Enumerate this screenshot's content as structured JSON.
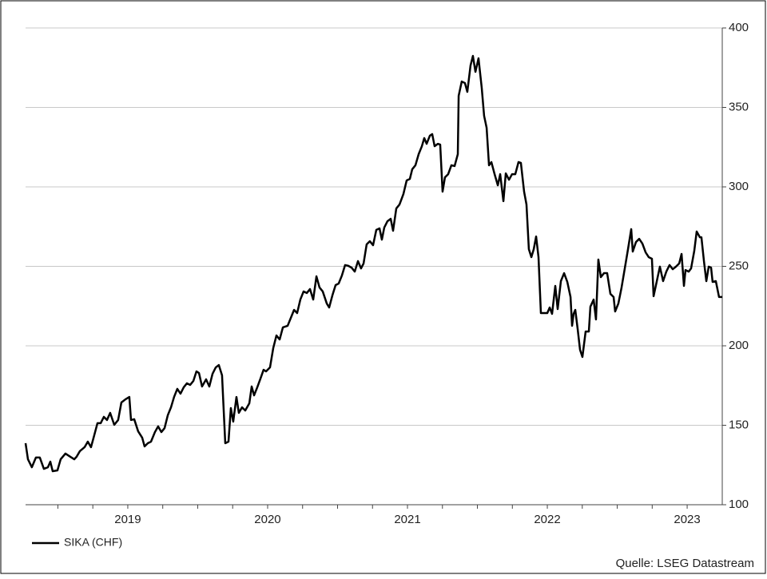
{
  "chart_data": {
    "type": "line",
    "source": "Quelle: LSEG Datastream",
    "x": [
      2018.769,
      2018.786,
      2018.814,
      2018.843,
      2018.871,
      2018.9,
      2018.929,
      2018.946,
      2018.963,
      2018.997,
      2019.02,
      2019.054,
      2019.089,
      2019.117,
      2019.134,
      2019.157,
      2019.191,
      2019.214,
      2019.237,
      2019.26,
      2019.283,
      2019.306,
      2019.329,
      2019.351,
      2019.374,
      2019.403,
      2019.431,
      2019.454,
      2019.483,
      2019.511,
      2019.523,
      2019.546,
      2019.574,
      2019.603,
      2019.62,
      2019.643,
      2019.666,
      2019.694,
      2019.717,
      2019.74,
      2019.763,
      2019.786,
      2019.809,
      2019.831,
      2019.854,
      2019.877,
      2019.9,
      2019.923,
      2019.946,
      2019.969,
      2019.991,
      2020.009,
      2020.031,
      2020.06,
      2020.083,
      2020.106,
      2020.129,
      2020.151,
      2020.174,
      2020.197,
      2020.22,
      2020.237,
      2020.254,
      2020.277,
      2020.294,
      2020.317,
      2020.34,
      2020.369,
      2020.386,
      2020.403,
      2020.426,
      2020.449,
      2020.471,
      2020.489,
      2020.517,
      2020.54,
      2020.563,
      2020.586,
      2020.609,
      2020.643,
      2020.666,
      2020.689,
      2020.711,
      2020.734,
      2020.757,
      2020.78,
      2020.803,
      2020.826,
      2020.849,
      2020.871,
      2020.894,
      2020.923,
      2020.94,
      2020.963,
      2020.986,
      2021.008,
      2021.031,
      2021.054,
      2021.077,
      2021.1,
      2021.123,
      2021.146,
      2021.168,
      2021.186,
      2021.208,
      2021.231,
      2021.254,
      2021.277,
      2021.3,
      2021.317,
      2021.334,
      2021.357,
      2021.38,
      2021.397,
      2021.42,
      2021.443,
      2021.471,
      2021.494,
      2021.517,
      2021.534,
      2021.557,
      2021.58,
      2021.603,
      2021.62,
      2021.637,
      2021.66,
      2021.677,
      2021.694,
      2021.717,
      2021.734,
      2021.751,
      2021.768,
      2021.791,
      2021.814,
      2021.837,
      2021.86,
      2021.866,
      2021.888,
      2021.911,
      2021.928,
      2021.951,
      2021.968,
      2021.986,
      2022.008,
      2022.031,
      2022.048,
      2022.066,
      2022.083,
      2022.1,
      2022.123,
      2022.146,
      2022.163,
      2022.186,
      2022.203,
      2022.226,
      2022.248,
      2022.271,
      2022.294,
      2022.311,
      2022.334,
      2022.351,
      2022.368,
      2022.386,
      2022.403,
      2022.42,
      2022.437,
      2022.454,
      2022.483,
      2022.5,
      2022.517,
      2022.534,
      2022.557,
      2022.574,
      2022.597,
      2022.62,
      2022.643,
      2022.666,
      2022.677,
      2022.688,
      2022.7,
      2022.717,
      2022.734,
      2022.751,
      2022.774,
      2022.797,
      2022.808,
      2022.831,
      2022.848,
      2022.865,
      2022.883,
      2022.905,
      2022.928,
      2022.951,
      2022.974,
      2022.985,
      2023.008,
      2023.031,
      2023.054,
      2023.077,
      2023.1,
      2023.111,
      2023.134,
      2023.157,
      2023.18,
      2023.203,
      2023.225,
      2023.248,
      2023.26,
      2023.283,
      2023.305,
      2023.328,
      2023.351,
      2023.374,
      2023.397,
      2023.42,
      2023.443,
      2023.46,
      2023.477,
      2023.488,
      2023.511,
      2023.528,
      2023.551,
      2023.568,
      2023.591,
      2023.602,
      2023.62,
      2023.637,
      2023.654,
      2023.671,
      2023.682,
      2023.705,
      2023.728,
      2023.751
    ],
    "series": [
      {
        "name": "SIKA (CHF)",
        "color": "#000000",
        "values": [
          138.7,
          128.6,
          123.6,
          129.7,
          129.7,
          122.6,
          123.6,
          127.1,
          121.1,
          121.6,
          128.6,
          132.2,
          130.2,
          128.6,
          130.2,
          133.7,
          136.2,
          139.7,
          136.2,
          143.7,
          151.3,
          151.3,
          155.3,
          153.3,
          157.8,
          150.3,
          153.3,
          164.3,
          166.3,
          167.8,
          153.3,
          153.8,
          146.2,
          142.2,
          136.7,
          138.7,
          139.7,
          145.7,
          149.3,
          145.7,
          148.2,
          156.3,
          161.3,
          167.8,
          172.9,
          169.9,
          173.9,
          176.4,
          175.4,
          177.9,
          183.9,
          182.9,
          174.4,
          178.9,
          174.4,
          182.4,
          186.4,
          187.9,
          181.4,
          138.7,
          139.7,
          160.8,
          152.3,
          167.8,
          157.8,
          161.3,
          159.3,
          163.8,
          174.4,
          168.8,
          173.9,
          179.4,
          184.9,
          183.9,
          186.4,
          198.5,
          206.5,
          204,
          211.6,
          212.6,
          217.6,
          222.6,
          220.6,
          229.1,
          234.2,
          233.2,
          235.7,
          229.1,
          243.7,
          236.7,
          234.2,
          226.6,
          224.1,
          231.7,
          238.2,
          239.2,
          244.2,
          250.8,
          250.3,
          249.2,
          246.7,
          253.3,
          248.7,
          251.8,
          263.8,
          265.8,
          263.3,
          272.9,
          273.9,
          266.8,
          274.4,
          278.4,
          279.9,
          272.4,
          286.4,
          288.9,
          295.5,
          304,
          305,
          311.1,
          313.6,
          320.6,
          325.6,
          330.7,
          327.1,
          332.2,
          333.2,
          325.6,
          327.1,
          326.6,
          297,
          306,
          308,
          313.6,
          313.1,
          320.6,
          357.3,
          366.3,
          365.3,
          359.8,
          376.4,
          382.4,
          372.4,
          380.9,
          362.3,
          344.7,
          337.2,
          313.6,
          315.6,
          308,
          301,
          308,
          291,
          308.5,
          304.5,
          308,
          308,
          315.6,
          315.1,
          297,
          288.9,
          260.8,
          255.8,
          260.8,
          268.8,
          255.8,
          220.6,
          220.6,
          220.6,
          224.1,
          220.1,
          237.7,
          223.1,
          240.7,
          245.7,
          240.2,
          230.7,
          212.6,
          220.1,
          222.6,
          210.6,
          197.5,
          193,
          209,
          209,
          224.6,
          229.1,
          216.6,
          254.3,
          243.2,
          245.7,
          245.7,
          232.7,
          230.7,
          221.6,
          226.6,
          236.7,
          248.7,
          260.8,
          273.4,
          259.3,
          265.3,
          267.3,
          264.3,
          258.8,
          255.8,
          254.8,
          231.2,
          240.7,
          249.8,
          240.7,
          246.7,
          250.8,
          248.2,
          249.8,
          251.8,
          257.8,
          237.7,
          247.7,
          246.7,
          248.7,
          259.8,
          271.9,
          268.3,
          268.3,
          253.3,
          240.7,
          249.8,
          249.2,
          240.2,
          240.7,
          230.7,
          230.7
        ]
      }
    ],
    "xlim": [
      2018.769,
      2023.751
    ],
    "ylim": [
      100,
      400
    ],
    "yticks": [
      100,
      150,
      200,
      250,
      300,
      350,
      400
    ],
    "xticks": [
      {
        "value": 2019.5,
        "label": "2019"
      },
      {
        "value": 2020.5,
        "label": "2020"
      },
      {
        "value": 2021.5,
        "label": "2021"
      },
      {
        "value": 2022.5,
        "label": "2022"
      },
      {
        "value": 2023.5,
        "label": "2023"
      }
    ],
    "xminorticks": [
      2019,
      2019.25,
      2019.5,
      2019.75,
      2020,
      2020.25,
      2020.5,
      2020.75,
      2021,
      2021.25,
      2021.5,
      2021.75,
      2022,
      2022.25,
      2022.5,
      2022.75,
      2023,
      2023.25,
      2023.5
    ],
    "grid": true
  }
}
